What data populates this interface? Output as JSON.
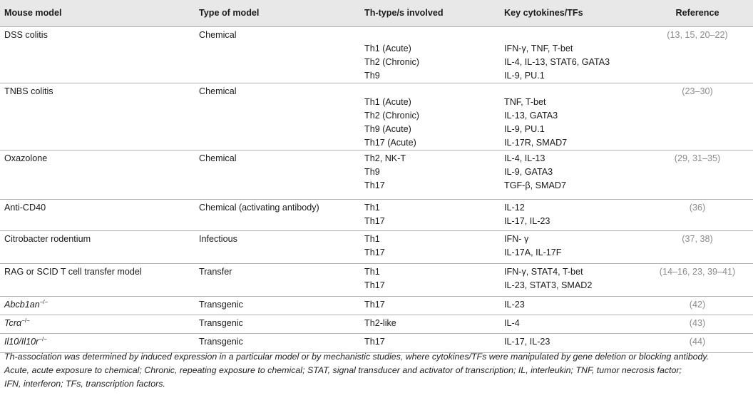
{
  "table": {
    "headers": [
      "Mouse model",
      "Type of model",
      "Th-type/s involved",
      "Key cytokines/TFs",
      "Reference"
    ],
    "rows": [
      {
        "model": "DSS colitis",
        "type": "Chemical",
        "th": [
          "",
          "Th1 (Acute)",
          "Th2 (Chronic)",
          "Th9"
        ],
        "cyto": [
          "",
          "IFN-γ, TNF, T-bet",
          "IL-4, IL-13, STAT6, GATA3",
          "IL-9, PU.1"
        ],
        "ref": "(13, 15, 20–22)"
      },
      {
        "model": "TNBS colitis",
        "type": "Chemical",
        "th": [
          "",
          "Th1 (Acute)",
          "Th2 (Chronic)",
          "Th9 (Acute)",
          "Th17 (Acute)"
        ],
        "cyto": [
          "",
          "TNF, T-bet",
          "IL-13, GATA3",
          "IL-9, PU.1",
          "IL-17R, SMAD7"
        ],
        "ref": "(23–30)"
      },
      {
        "model": "Oxazolone",
        "type": "Chemical",
        "th": [
          "Th2, NK-T",
          "Th9",
          "Th17"
        ],
        "cyto": [
          "IL-4, IL-13",
          "IL-9, GATA3",
          "TGF-β, SMAD7"
        ],
        "ref": "(29, 31–35)"
      },
      {
        "model": "Anti-CD40",
        "type": "Chemical (activating antibody)",
        "th": [
          "Th1",
          "Th17"
        ],
        "cyto": [
          "IL-12",
          "IL-17, IL-23"
        ],
        "ref": "(36)"
      },
      {
        "model": "Citrobacter rodentium",
        "type": "Infectious",
        "th": [
          "Th1",
          "Th17"
        ],
        "cyto": [
          "IFN- γ",
          "IL-17A, IL-17F"
        ],
        "ref": "(37, 38)"
      },
      {
        "model": "RAG or SCID T cell transfer model",
        "type": "Transfer",
        "th": [
          "Th1",
          "Th17"
        ],
        "cyto": [
          "IFN-γ, STAT4, T-bet",
          "IL-23, STAT3, SMAD2"
        ],
        "ref": "(14–16, 23, 39–41)"
      },
      {
        "model_base": "Abcb1an",
        "model_sup": "−/−",
        "type": "Transgenic",
        "th": [
          "Th17"
        ],
        "cyto": [
          "IL-23"
        ],
        "ref": "(42)"
      },
      {
        "model_base": "Tcrα",
        "model_sup": "−/−",
        "type": "Transgenic",
        "th": [
          "Th2-like"
        ],
        "cyto": [
          "IL-4"
        ],
        "ref": "(43)"
      },
      {
        "model_base": "Il10/Il10r",
        "model_sup": "−/−",
        "type": "Transgenic",
        "th": [
          "Th17"
        ],
        "cyto": [
          "IL-17, IL-23"
        ],
        "ref": "(44)"
      }
    ]
  },
  "footnote": {
    "line1": "Th-association was determined by induced expression in a particular model or by mechanistic studies, where cytokines/TFs were manipulated by gene deletion or blocking antibody.",
    "line2": "Acute, acute exposure to chemical; Chronic, repeating exposure to chemical; STAT, signal transducer and activator of transcription; IL, interleukin; TNF, tumor necrosis factor;",
    "line3": "IFN, interferon; TFs, transcription factors."
  }
}
